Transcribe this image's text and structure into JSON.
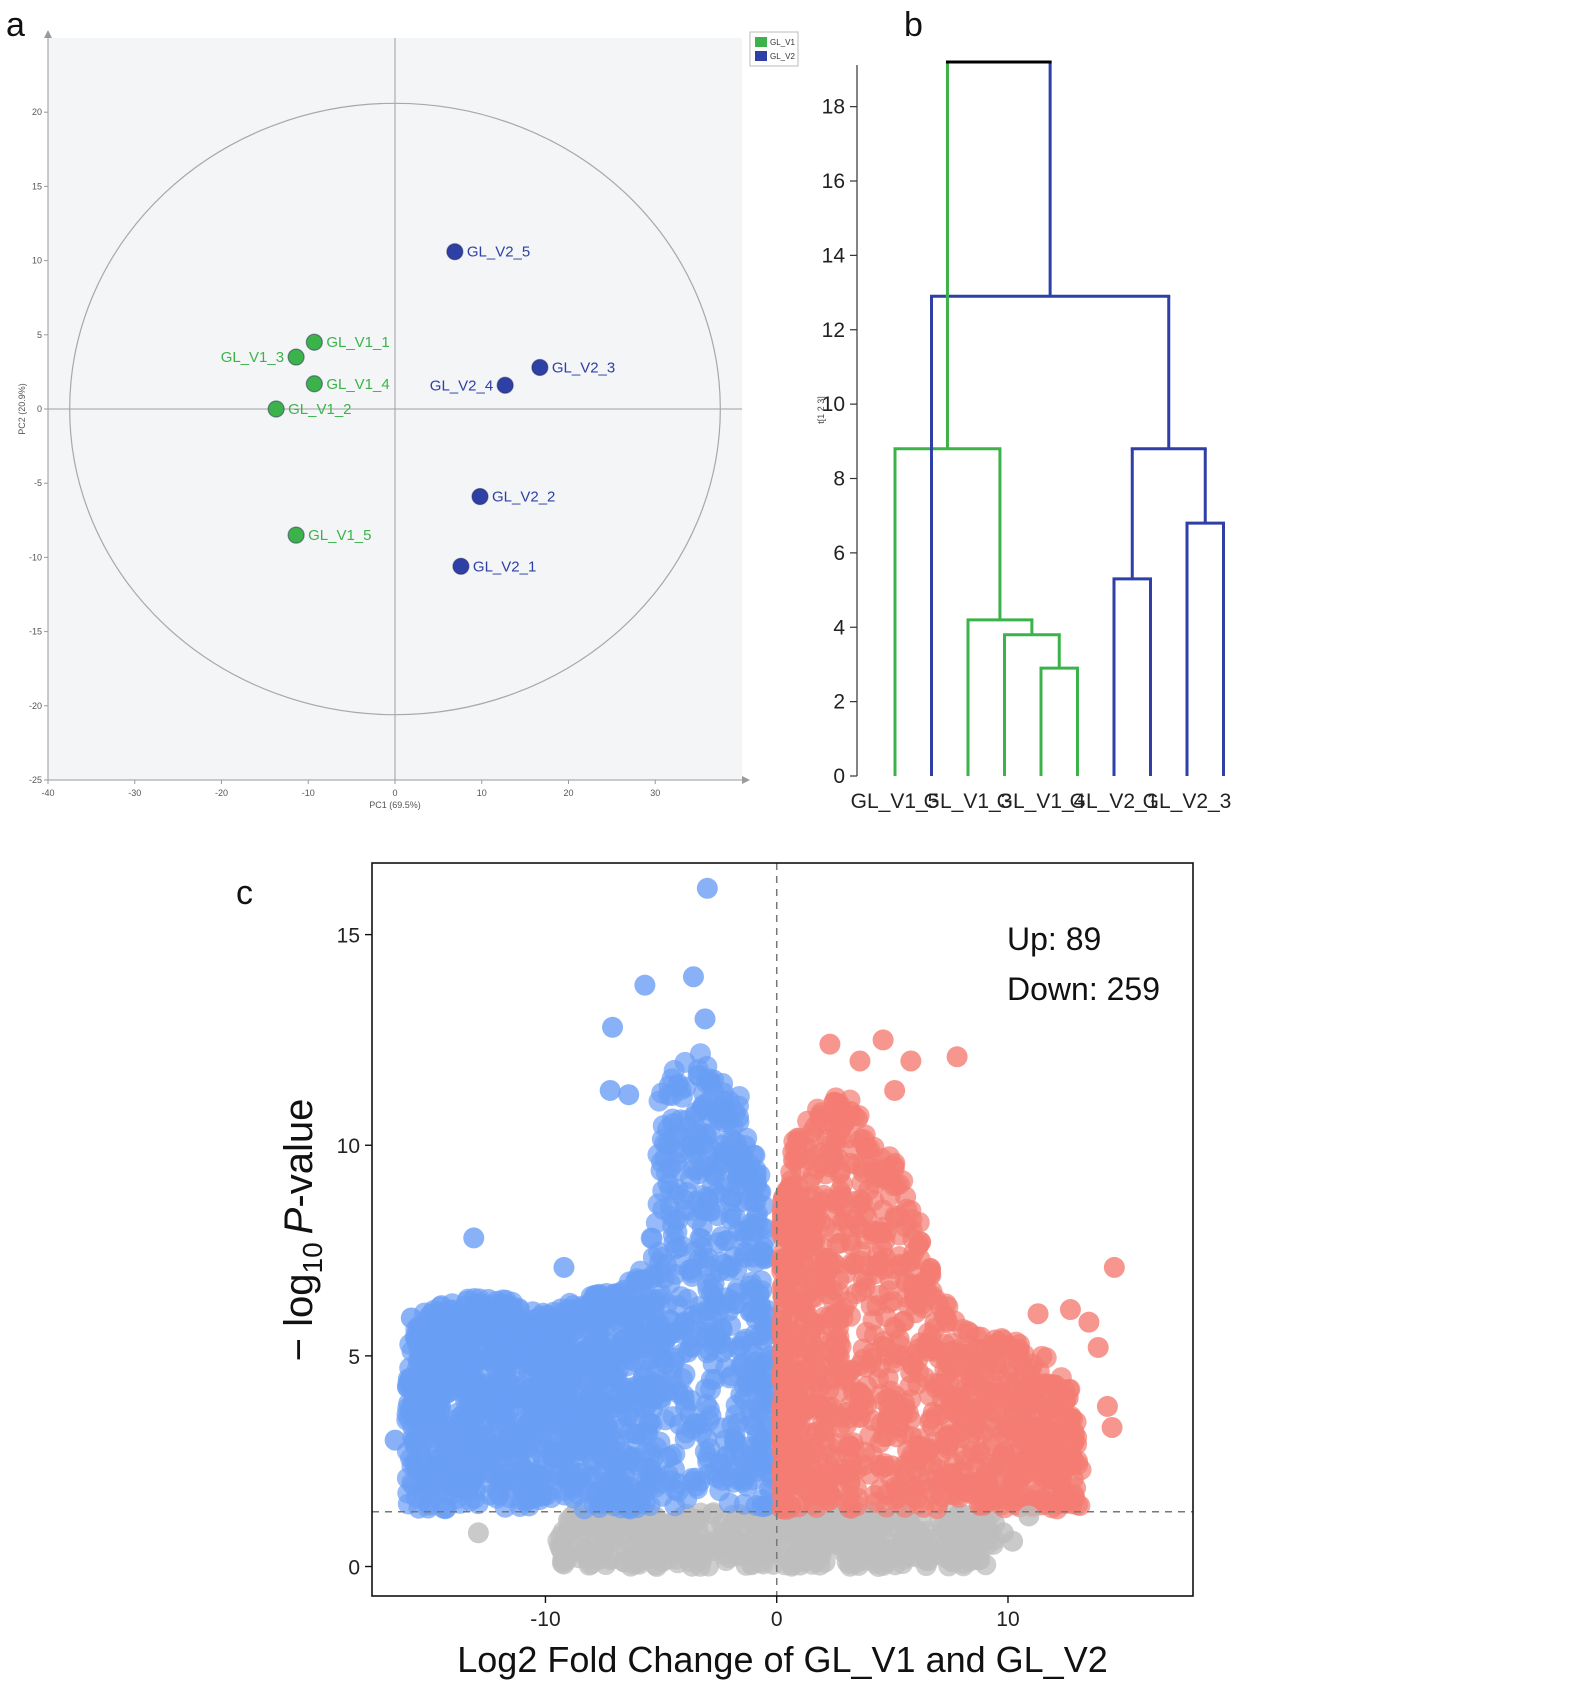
{
  "panels": {
    "a": "a",
    "b": "b",
    "c": "c"
  },
  "chart_data": [
    {
      "id": "pca",
      "type": "scatter",
      "title": "",
      "xlabel": "PC1 (69.5%)",
      "ylabel": "PC2 (20.9%)",
      "xlim": [
        -40,
        40
      ],
      "ylim": [
        -25,
        25
      ],
      "xticks": [
        -40,
        -30,
        -20,
        -10,
        0,
        10,
        20,
        30
      ],
      "yticks": [
        -25,
        -20,
        -15,
        -10,
        -5,
        0,
        5,
        10,
        15,
        20
      ],
      "ellipse": {
        "rx": 37.5,
        "ry": 20.6
      },
      "legend": [
        {
          "name": "GL_V1",
          "color": "#3cb34a"
        },
        {
          "name": "GL_V2",
          "color": "#2e3fa6"
        }
      ],
      "series": [
        {
          "name": "GL_V1",
          "color": "#3cb34a",
          "points": [
            {
              "label": "GL_V1_1",
              "x": -9.3,
              "y": 4.5
            },
            {
              "label": "GL_V1_2",
              "x": -13.7,
              "y": 0.0
            },
            {
              "label": "GL_V1_3",
              "x": -11.4,
              "y": 3.5
            },
            {
              "label": "GL_V1_4",
              "x": -9.3,
              "y": 1.7
            },
            {
              "label": "GL_V1_5",
              "x": -11.4,
              "y": -8.5
            }
          ]
        },
        {
          "name": "GL_V2",
          "color": "#2e3fa6",
          "points": [
            {
              "label": "GL_V2_1",
              "x": 7.6,
              "y": -10.6
            },
            {
              "label": "GL_V2_2",
              "x": 9.8,
              "y": -5.9
            },
            {
              "label": "GL_V2_3",
              "x": 16.7,
              "y": 2.8
            },
            {
              "label": "GL_V2_4",
              "x": 12.7,
              "y": 1.6
            },
            {
              "label": "GL_V2_5",
              "x": 6.9,
              "y": 10.6
            }
          ]
        }
      ]
    },
    {
      "id": "dendrogram",
      "type": "dendrogram",
      "ylabel": "t[1 2 3]",
      "ylim": [
        0,
        19.2
      ],
      "yticks": [
        0,
        2,
        4,
        6,
        8,
        10,
        12,
        14,
        16,
        18
      ],
      "leaves": [
        "GL_V1_5",
        "",
        "GL_V1_3",
        "",
        "GL_V1_4",
        "",
        "GL_V2_1",
        "",
        "GL_V2_3",
        ""
      ],
      "leaf_labels_shown": [
        "GL_V1_5",
        "GL_V1_3",
        "GL_V1_4",
        "GL_V2_1",
        "GL_V2_3"
      ],
      "colors": {
        "group1": "#3cb34a",
        "group2": "#2e3fa6",
        "root": "#000000"
      },
      "merges": [
        {
          "left": 4,
          "right": 5,
          "height": 2.9,
          "group": "group1"
        },
        {
          "left": 3,
          "rightNode": 0,
          "height": 3.8,
          "group": "group1"
        },
        {
          "left": 2,
          "rightNode": 1,
          "height": 4.2,
          "group": "group1"
        },
        {
          "left": 0,
          "rightNode": 2,
          "height": 8.8,
          "group": "group1"
        },
        {
          "left": 6,
          "right": 7,
          "height": 5.3,
          "group": "group2"
        },
        {
          "left": 8,
          "right": 9,
          "height": 6.8,
          "group": "group2"
        },
        {
          "leftNode": 4,
          "rightNode": 5,
          "height": 8.8,
          "group": "group2"
        },
        {
          "left": 1,
          "rightNode": 6,
          "height": 12.9,
          "group": "group2"
        },
        {
          "leftNode": 3,
          "rightNode": 7,
          "height": 19.2,
          "group": "root"
        }
      ]
    },
    {
      "id": "volcano",
      "type": "scatter",
      "xlabel": "Log2 Fold Change of GL_V1 and GL_V2",
      "ylabel_prefix": "− log",
      "ylabel_sub": "10",
      "ylabel_italic": "P",
      "ylabel_suffix": "-value",
      "xlim": [
        -17.5,
        18
      ],
      "ylim": [
        -0.7,
        16.7
      ],
      "xticks": [
        -10,
        0,
        10
      ],
      "yticks": [
        0,
        5,
        10,
        15
      ],
      "threshold_y": 1.3,
      "threshold_x": 0,
      "annotations": {
        "up": "Up: 89",
        "down": "Down: 259"
      },
      "colors": {
        "down": "#6a9ef5",
        "up": "#f47c72",
        "ns": "#bdbdbd"
      },
      "down_envelope": [
        [
          -16.4,
          4.5
        ],
        [
          -15.8,
          5.9
        ],
        [
          -14.5,
          6.3
        ],
        [
          -12.8,
          6.4
        ],
        [
          -11,
          6.3
        ],
        [
          -9.8,
          6.1
        ],
        [
          -8.2,
          6.4
        ],
        [
          -6.8,
          6.6
        ],
        [
          -5.6,
          7.2
        ],
        [
          -5.2,
          8.6
        ],
        [
          -5.4,
          10.5
        ],
        [
          -5.2,
          11.3
        ],
        [
          -4.4,
          11.8
        ],
        [
          -3.4,
          12.3
        ],
        [
          -2.6,
          11.6
        ],
        [
          -1.6,
          11.2
        ],
        [
          -1,
          10
        ],
        [
          -0.4,
          8.6
        ],
        [
          -0.2,
          5
        ]
      ],
      "up_envelope": [
        [
          0.2,
          8.5
        ],
        [
          0.8,
          10.3
        ],
        [
          1.8,
          11
        ],
        [
          2.9,
          11.2
        ],
        [
          3.6,
          10.9
        ],
        [
          4.2,
          10.2
        ],
        [
          5.1,
          9.6
        ],
        [
          5.9,
          8.7
        ],
        [
          6.5,
          7.6
        ],
        [
          7.3,
          6.3
        ],
        [
          8.5,
          5.6
        ],
        [
          10.1,
          5.4
        ],
        [
          11.5,
          5.1
        ],
        [
          12.6,
          4.4
        ],
        [
          13.2,
          3.2
        ]
      ],
      "outliers": [
        {
          "x": -3.0,
          "y": 16.1,
          "g": "down"
        },
        {
          "x": -3.6,
          "y": 14.0,
          "g": "down"
        },
        {
          "x": -5.7,
          "y": 13.8,
          "g": "down"
        },
        {
          "x": -7.1,
          "y": 12.8,
          "g": "down"
        },
        {
          "x": -3.1,
          "y": 13.0,
          "g": "down"
        },
        {
          "x": -7.2,
          "y": 11.3,
          "g": "down"
        },
        {
          "x": -6.4,
          "y": 11.2,
          "g": "down"
        },
        {
          "x": -13.1,
          "y": 7.8,
          "g": "down"
        },
        {
          "x": -9.2,
          "y": 7.1,
          "g": "down"
        },
        {
          "x": -15.8,
          "y": 5.9,
          "g": "down"
        },
        {
          "x": -16.5,
          "y": 3.0,
          "g": "down"
        },
        {
          "x": -14.6,
          "y": 1.8,
          "g": "down"
        },
        {
          "x": -14.0,
          "y": 3.0,
          "g": "down"
        },
        {
          "x": -13.7,
          "y": 2.4,
          "g": "down"
        },
        {
          "x": -12.0,
          "y": 1.7,
          "g": "down"
        },
        {
          "x": -15.1,
          "y": 3.3,
          "g": "down"
        },
        {
          "x": 2.3,
          "y": 12.4,
          "g": "up"
        },
        {
          "x": 3.6,
          "y": 12.0,
          "g": "up"
        },
        {
          "x": 4.6,
          "y": 12.5,
          "g": "up"
        },
        {
          "x": 5.8,
          "y": 12.0,
          "g": "up"
        },
        {
          "x": 7.8,
          "y": 12.1,
          "g": "up"
        },
        {
          "x": 5.1,
          "y": 11.3,
          "g": "up"
        },
        {
          "x": 3.2,
          "y": 10.8,
          "g": "up"
        },
        {
          "x": 14.6,
          "y": 7.1,
          "g": "up"
        },
        {
          "x": 12.7,
          "y": 6.1,
          "g": "up"
        },
        {
          "x": 11.3,
          "y": 6.0,
          "g": "up"
        },
        {
          "x": 13.5,
          "y": 5.8,
          "g": "up"
        },
        {
          "x": 13.9,
          "y": 5.2,
          "g": "up"
        },
        {
          "x": 14.3,
          "y": 3.8,
          "g": "up"
        },
        {
          "x": 14.5,
          "y": 3.3,
          "g": "up"
        },
        {
          "x": 12.0,
          "y": 4.3,
          "g": "up"
        },
        {
          "x": 12.6,
          "y": 4.0,
          "g": "up"
        },
        {
          "x": 12.5,
          "y": 1.5,
          "g": "up"
        },
        {
          "x": 10.4,
          "y": 2.3,
          "g": "up"
        },
        {
          "x": -12.9,
          "y": 0.8,
          "g": "ns"
        },
        {
          "x": 10.2,
          "y": 0.6,
          "g": "ns"
        },
        {
          "x": 9.8,
          "y": 0.8,
          "g": "ns"
        },
        {
          "x": 10.9,
          "y": 1.2,
          "g": "ns"
        }
      ]
    }
  ]
}
